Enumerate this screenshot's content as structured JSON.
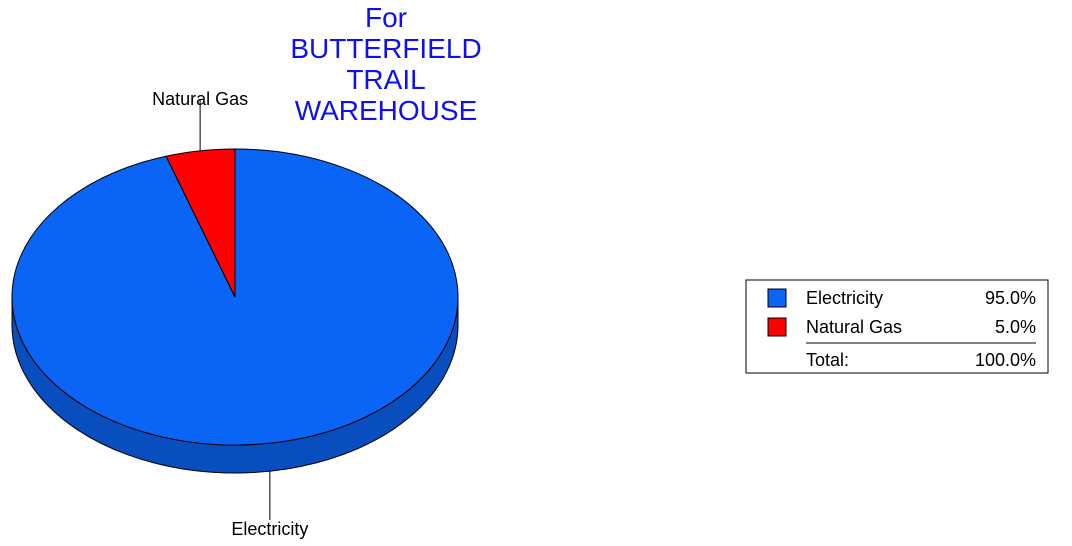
{
  "chart_data": {
    "type": "pie",
    "title": "For BUTTERFIELD TRAIL WAREHOUSE",
    "categories": [
      "Electricity",
      "Natural Gas"
    ],
    "values": [
      95,
      5
    ],
    "value_labels": [
      "95.0%",
      "5.0%"
    ],
    "colors": [
      "#0a64f5",
      "#ff0000"
    ],
    "total": {
      "label": "Total:",
      "value": 100,
      "value_label": "100.0%"
    },
    "legend": "right"
  }
}
